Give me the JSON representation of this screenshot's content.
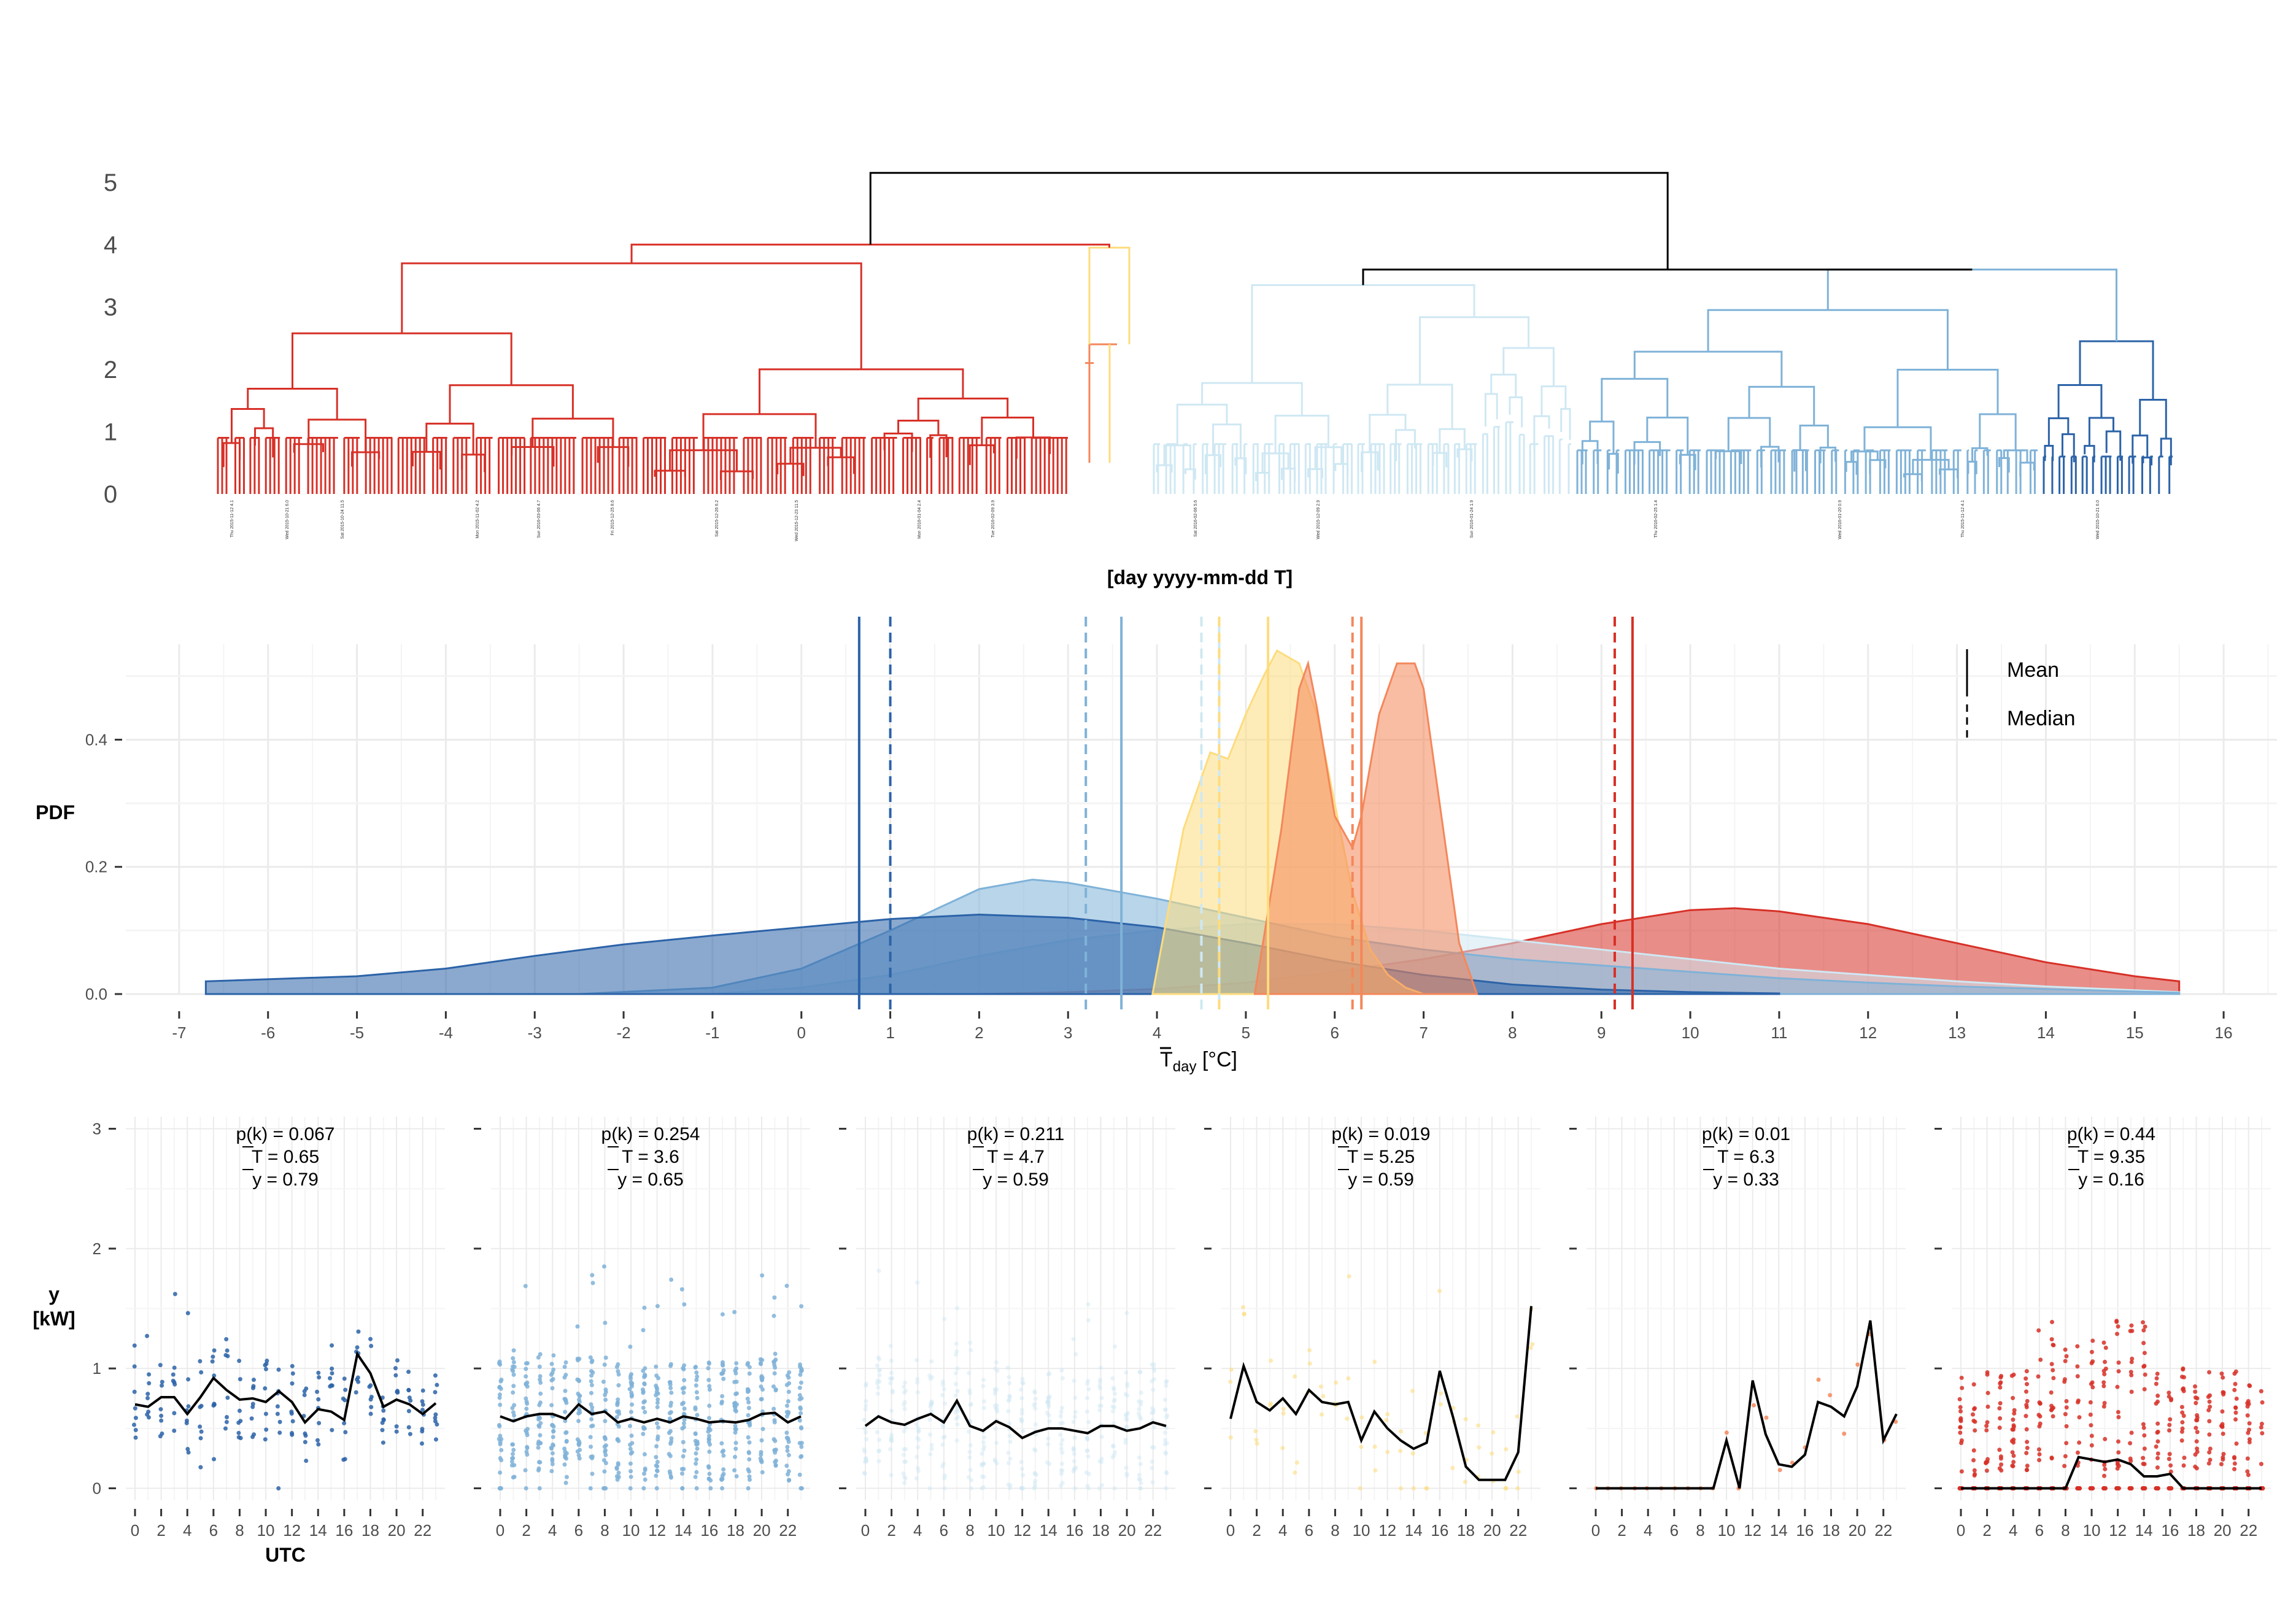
{
  "colors": {
    "cluster_k1": "#2c63a8",
    "cluster_k2": "#7fb2d8",
    "cluster_k3": "#cfe8f3",
    "cluster_k4": "#fddc7e",
    "cluster_k5": "#f4875a",
    "cluster_k6": "#d73027",
    "root": "#000000",
    "grid": "#ebebeb"
  },
  "dendrogram": {
    "xlabel": "[day yyyy-mm-dd T]",
    "y_ticks": [
      "0",
      "1",
      "2",
      "3",
      "4",
      "5"
    ],
    "ylim": [
      0,
      5.3
    ],
    "sample_leaf_labels": [
      "Thu 2015-11-12 4.1",
      "Wed 2015-10-21 6.0",
      "Sat 2015-10-24 11.5",
      "Mon 2015-11-02 4.2",
      "Sun 2016-03-06 4.7",
      "Fri 2015-12-25 8.6",
      "Sat 2015-12-26 6.2",
      "Wed 2015-12-23 11.5",
      "Mon 2016-01-04 2.4",
      "Tue 2016-02-09 3.9",
      "Sat 2016-02-06 5.6",
      "Wed 2015-12-09 2.9",
      "Sun 2016-01-24 1.9",
      "Thu 2016-02-25 1.4",
      "Wed 2016-01-20 0.9"
    ]
  },
  "density": {
    "ylabel": "PDF",
    "xlabel_main": "T",
    "xlabel_sub": "day",
    "xlabel_unit": " [°C]",
    "legend": {
      "mean": "Mean",
      "median": "Median",
      "placement": "top-right"
    }
  },
  "clusters": [
    {
      "id": "k1",
      "p_label": "p(k) = 0.067",
      "T_label": "T = 0.65",
      "y_label": "y = 0.79"
    },
    {
      "id": "k2",
      "p_label": "p(k) = 0.254",
      "T_label": "T = 3.6",
      "y_label": "y = 0.65"
    },
    {
      "id": "k3",
      "p_label": "p(k) = 0.211",
      "T_label": "T = 4.7",
      "y_label": "y = 0.59"
    },
    {
      "id": "k4",
      "p_label": "p(k) = 0.019",
      "T_label": "T = 5.25",
      "y_label": "y = 0.59"
    },
    {
      "id": "k5",
      "p_label": "p(k) = 0.01",
      "T_label": "T = 6.3",
      "y_label": "y = 0.33"
    },
    {
      "id": "k6",
      "p_label": "p(k) = 0.44",
      "T_label": "T = 9.35",
      "y_label": "y = 0.16"
    }
  ],
  "profiles": {
    "ylabel_line1": "y",
    "ylabel_line2": "[kW]",
    "xlabel": "UTC",
    "x_ticks": [
      "0",
      "2",
      "4",
      "6",
      "8",
      "10",
      "12",
      "14",
      "16",
      "18",
      "20",
      "22"
    ],
    "y_ticks": [
      "0",
      "1",
      "2",
      "3"
    ]
  },
  "chart_data": [
    {
      "type": "dendrogram",
      "ylim": [
        0,
        5.3
      ],
      "merge_heights": {
        "root": 5.15,
        "left_branch": 4.0,
        "right_branch": 3.6,
        "red_cluster": 3.7,
        "light_blue_cluster": 3.35
      },
      "xlabel": "[day yyyy-mm-dd T]"
    },
    {
      "type": "area",
      "xlim": [
        -7.6,
        16.6
      ],
      "ylim": [
        0,
        0.55
      ],
      "x_ticks": [
        -7,
        -6,
        -5,
        -4,
        -3,
        -2,
        -1,
        0,
        1,
        2,
        3,
        4,
        5,
        6,
        7,
        8,
        9,
        10,
        11,
        12,
        13,
        14,
        15,
        16
      ],
      "y_ticks": [
        0.0,
        0.2,
        0.4
      ],
      "series": [
        {
          "cluster": "k1",
          "mean": 0.65,
          "median": 1.0,
          "x": [
            -6.7,
            -5,
            -4,
            -3,
            -2,
            -1,
            0,
            1,
            2,
            3,
            4,
            5,
            6,
            7,
            8,
            9,
            10,
            11
          ],
          "values": [
            0.02,
            0.028,
            0.04,
            0.06,
            0.078,
            0.092,
            0.105,
            0.118,
            0.125,
            0.12,
            0.105,
            0.08,
            0.052,
            0.03,
            0.015,
            0.007,
            0.003,
            0.001
          ]
        },
        {
          "cluster": "k2",
          "mean": 3.6,
          "median": 3.2,
          "x": [
            -2.5,
            -1,
            0,
            1,
            2,
            2.6,
            3,
            4,
            5,
            6,
            7,
            8,
            9,
            10,
            11,
            12,
            13,
            14,
            15,
            15.5
          ],
          "values": [
            0.0,
            0.01,
            0.04,
            0.1,
            0.165,
            0.18,
            0.175,
            0.15,
            0.12,
            0.09,
            0.07,
            0.055,
            0.045,
            0.035,
            0.025,
            0.018,
            0.012,
            0.008,
            0.004,
            0.002
          ]
        },
        {
          "cluster": "k3",
          "mean": 4.7,
          "median": 4.5,
          "x": [
            -1,
            0,
            1,
            2,
            3,
            4,
            5,
            6,
            7,
            8,
            9,
            10,
            11,
            12,
            13,
            14,
            15,
            15.5
          ],
          "values": [
            0.0,
            0.01,
            0.03,
            0.06,
            0.085,
            0.1,
            0.11,
            0.11,
            0.1,
            0.085,
            0.07,
            0.055,
            0.04,
            0.03,
            0.02,
            0.012,
            0.006,
            0.003
          ]
        },
        {
          "cluster": "k4",
          "mean": 5.25,
          "median": 4.7,
          "x": [
            3.95,
            4.3,
            4.6,
            4.8,
            5.0,
            5.2,
            5.35,
            5.6,
            5.8,
            6.0,
            6.2,
            6.4,
            6.6,
            6.8,
            7.0
          ],
          "values": [
            0.0,
            0.26,
            0.38,
            0.37,
            0.44,
            0.5,
            0.54,
            0.52,
            0.44,
            0.3,
            0.16,
            0.07,
            0.03,
            0.01,
            0.0
          ]
        },
        {
          "cluster": "k5",
          "mean": 6.3,
          "median": 6.2,
          "x": [
            5.1,
            5.4,
            5.6,
            5.7,
            5.8,
            6.0,
            6.2,
            6.3,
            6.5,
            6.7,
            6.9,
            7.0,
            7.2,
            7.4,
            7.6
          ],
          "values": [
            0.0,
            0.26,
            0.48,
            0.52,
            0.45,
            0.28,
            0.23,
            0.28,
            0.44,
            0.52,
            0.52,
            0.48,
            0.28,
            0.08,
            0.0
          ]
        },
        {
          "cluster": "k6",
          "mean": 9.35,
          "median": 9.15,
          "x": [
            2,
            3,
            4,
            5,
            6,
            7,
            8,
            9,
            10,
            10.5,
            11,
            12,
            13,
            14,
            15,
            15.5
          ],
          "values": [
            0.0,
            0.003,
            0.008,
            0.018,
            0.035,
            0.055,
            0.08,
            0.11,
            0.132,
            0.135,
            0.13,
            0.11,
            0.08,
            0.05,
            0.028,
            0.02
          ]
        }
      ]
    },
    {
      "type": "line",
      "x": [
        0,
        1,
        2,
        3,
        4,
        5,
        6,
        7,
        8,
        9,
        10,
        11,
        12,
        13,
        14,
        15,
        16,
        17,
        18,
        19,
        20,
        21,
        22,
        23
      ],
      "ylim": [
        -0.1,
        3.1
      ],
      "series": [
        {
          "cluster": "k1",
          "values": [
            0.7,
            0.68,
            0.76,
            0.76,
            0.62,
            0.76,
            0.92,
            0.82,
            0.74,
            0.75,
            0.72,
            0.81,
            0.72,
            0.55,
            0.66,
            0.64,
            0.57,
            1.12,
            0.96,
            0.68,
            0.74,
            0.7,
            0.62,
            0.71
          ]
        },
        {
          "cluster": "k2",
          "values": [
            0.6,
            0.56,
            0.6,
            0.62,
            0.62,
            0.58,
            0.7,
            0.62,
            0.64,
            0.55,
            0.58,
            0.55,
            0.58,
            0.55,
            0.6,
            0.58,
            0.55,
            0.56,
            0.55,
            0.57,
            0.62,
            0.63,
            0.55,
            0.6
          ]
        },
        {
          "cluster": "k3",
          "values": [
            0.52,
            0.6,
            0.55,
            0.53,
            0.58,
            0.62,
            0.55,
            0.73,
            0.52,
            0.48,
            0.56,
            0.51,
            0.42,
            0.47,
            0.5,
            0.5,
            0.48,
            0.46,
            0.52,
            0.52,
            0.48,
            0.5,
            0.55,
            0.52
          ]
        },
        {
          "cluster": "k4",
          "values": [
            0.58,
            1.02,
            0.72,
            0.65,
            0.75,
            0.62,
            0.82,
            0.72,
            0.7,
            0.72,
            0.4,
            0.64,
            0.5,
            0.4,
            0.33,
            0.38,
            0.98,
            0.6,
            0.18,
            0.07,
            0.07,
            0.07,
            0.3,
            1.52
          ]
        },
        {
          "cluster": "k5",
          "values": [
            0.0,
            0.0,
            0.0,
            0.0,
            0.0,
            0.0,
            0.0,
            0.0,
            0.0,
            0.0,
            0.4,
            0.0,
            0.9,
            0.45,
            0.2,
            0.18,
            0.28,
            0.72,
            0.68,
            0.6,
            0.85,
            1.4,
            0.4,
            0.62
          ]
        },
        {
          "cluster": "k6",
          "values": [
            0.0,
            0.0,
            0.0,
            0.0,
            0.0,
            0.0,
            0.0,
            0.0,
            0.0,
            0.26,
            0.24,
            0.22,
            0.24,
            0.2,
            0.1,
            0.1,
            0.12,
            0.0,
            0.0,
            0.0,
            0.0,
            0.0,
            0.0,
            0.0
          ]
        }
      ]
    }
  ]
}
